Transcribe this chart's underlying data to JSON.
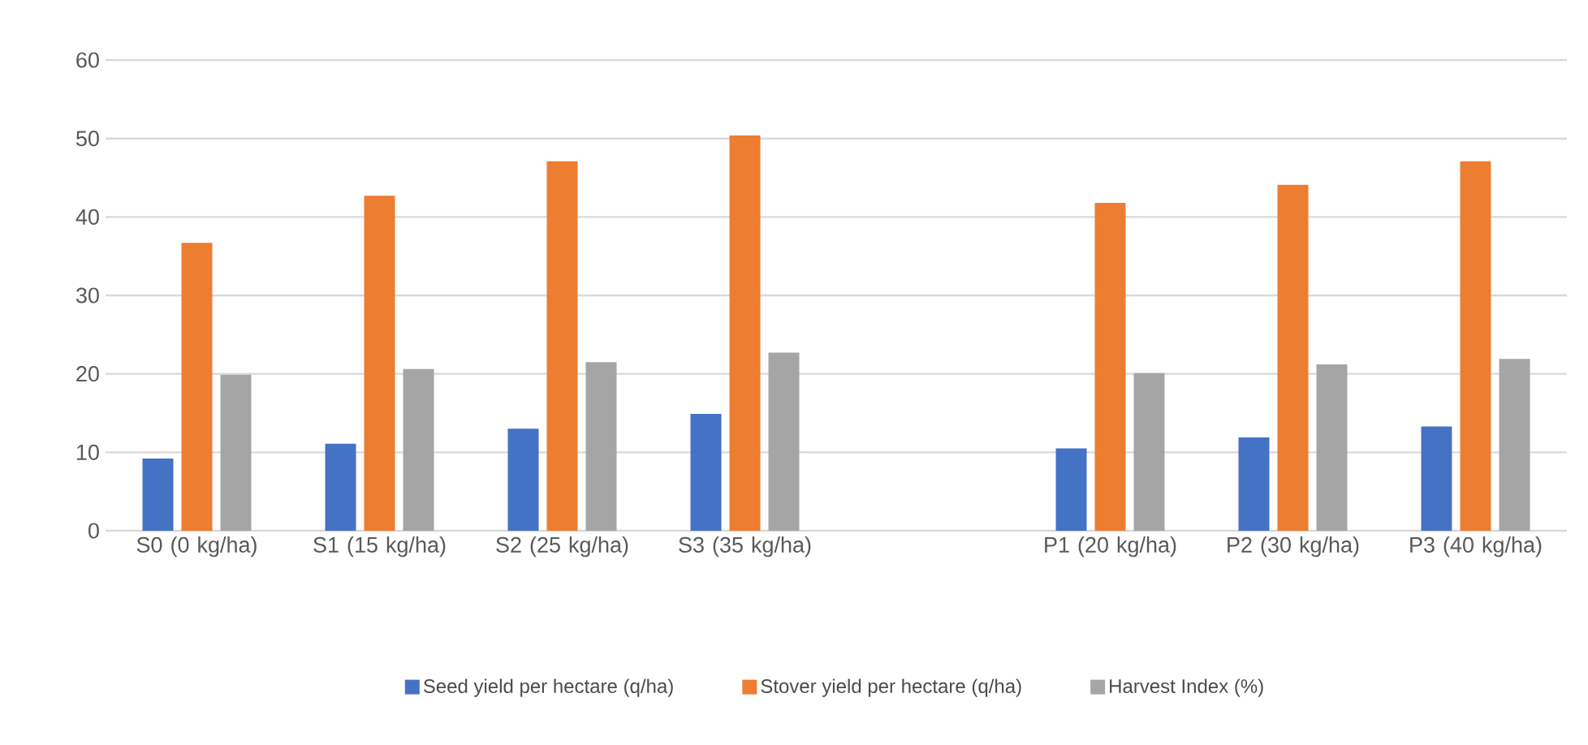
{
  "chart_data": {
    "type": "bar",
    "categories": [
      "S0 (0 kg/ha)",
      "S1 (15 kg/ha)",
      "S2 (25 kg/ha)",
      "S3 (35 kg/ha)",
      null,
      "P1 (20 kg/ha)",
      "P2 (30 kg/ha)",
      "P3 (40 kg/ha)"
    ],
    "series": [
      {
        "name": "Seed yield per hectare (q/ha)",
        "color": "#4472c4",
        "values": [
          9.2,
          11.1,
          13.0,
          14.9,
          null,
          10.5,
          11.9,
          13.3
        ]
      },
      {
        "name": "Stover yield per hectare (q/ha)",
        "color": "#ed7d31",
        "values": [
          36.7,
          42.7,
          47.1,
          50.4,
          null,
          41.8,
          44.1,
          47.1
        ]
      },
      {
        "name": "Harvest Index (%)",
        "color": "#a5a5a5",
        "values": [
          19.9,
          20.6,
          21.5,
          22.7,
          null,
          20.1,
          21.2,
          21.9
        ]
      }
    ],
    "ylim": [
      0,
      60
    ],
    "yticks": [
      0,
      10,
      20,
      30,
      40,
      50,
      60
    ],
    "grid": "y",
    "legend": "bottom"
  }
}
